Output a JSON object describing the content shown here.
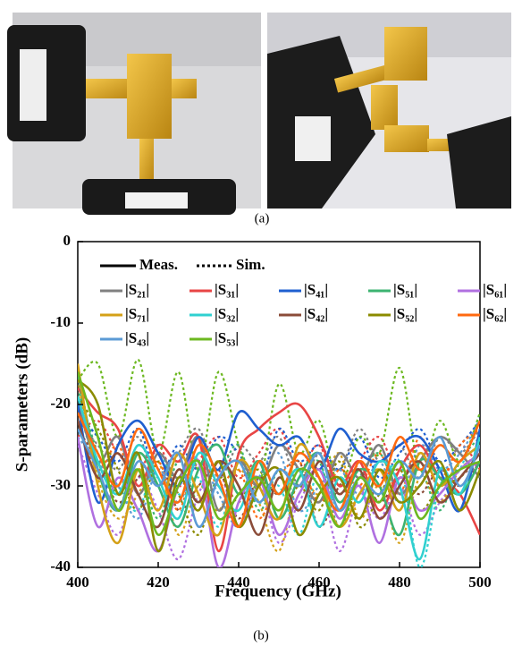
{
  "photo_caption": "(a)",
  "chart_caption": "(b)",
  "chart_data": {
    "type": "line",
    "xlabel": "Frequency (GHz)",
    "ylabel": "S-parameters (dB)",
    "xlim": [
      400,
      500
    ],
    "ylim": [
      -40,
      0
    ],
    "xticks": [
      400,
      420,
      440,
      460,
      480,
      500
    ],
    "yticks": [
      0,
      -10,
      -20,
      -30,
      -40
    ],
    "line_styles": [
      {
        "label": "Meas.",
        "dash": "solid"
      },
      {
        "label": "Sim.",
        "dash": "dotted"
      }
    ],
    "x": [
      400,
      405,
      410,
      415,
      420,
      425,
      430,
      435,
      440,
      445,
      450,
      455,
      460,
      465,
      470,
      475,
      480,
      485,
      490,
      495,
      500
    ],
    "series": [
      {
        "name": "|S₂₁|",
        "color": "#808080",
        "values": [
          -20,
          -27,
          -24,
          -31,
          -26,
          -29,
          -24,
          -33,
          -27,
          -30,
          -25,
          -28,
          -32,
          -26,
          -29,
          -25,
          -31,
          -27,
          -24,
          -26,
          -29
        ],
        "sim_values": [
          -22,
          -25,
          -28,
          -24,
          -30,
          -26,
          -23,
          -29,
          -25,
          -27,
          -24,
          -30,
          -26,
          -28,
          -23,
          -27,
          -25,
          -29,
          -24,
          -26,
          -23
        ]
      },
      {
        "name": "|S₃₁|",
        "color": "#e84545",
        "values": [
          -18,
          -21,
          -23,
          -30,
          -25,
          -27,
          -24,
          -38,
          -26,
          -23,
          -21,
          -20,
          -24,
          -30,
          -27,
          -33,
          -28,
          -25,
          -29,
          -31,
          -36
        ],
        "sim_values": [
          -24,
          -22,
          -26,
          -28,
          -25,
          -30,
          -27,
          -24,
          -29,
          -26,
          -23,
          -28,
          -25,
          -31,
          -27,
          -24,
          -29,
          -26,
          -30,
          -25,
          -28
        ]
      },
      {
        "name": "|S₄₁|",
        "color": "#1f5fd0",
        "values": [
          -20,
          -32,
          -25,
          -22,
          -26,
          -30,
          -24,
          -28,
          -21,
          -23,
          -25,
          -24,
          -28,
          -23,
          -26,
          -27,
          -25,
          -24,
          -28,
          -33,
          -23
        ],
        "sim_values": [
          -21,
          -24,
          -27,
          -23,
          -29,
          -25,
          -28,
          -24,
          -26,
          -30,
          -23,
          -27,
          -25,
          -28,
          -24,
          -29,
          -26,
          -23,
          -27,
          -25,
          -22
        ]
      },
      {
        "name": "|S₅₁|",
        "color": "#3cb371",
        "values": [
          -16,
          -28,
          -33,
          -26,
          -30,
          -35,
          -28,
          -25,
          -31,
          -27,
          -34,
          -29,
          -26,
          -32,
          -28,
          -30,
          -36,
          -27,
          -29,
          -31,
          -27
        ],
        "sim_values": [
          -18,
          -26,
          -31,
          -28,
          -34,
          -27,
          -32,
          -29,
          -25,
          -33,
          -28,
          -30,
          -27,
          -35,
          -29,
          -26,
          -31,
          -28,
          -33,
          -27,
          -24
        ]
      },
      {
        "name": "|S₆₁|",
        "color": "#b070e0",
        "values": [
          -24,
          -35,
          -29,
          -33,
          -38,
          -30,
          -27,
          -40,
          -32,
          -29,
          -36,
          -31,
          -28,
          -34,
          -30,
          -37,
          -29,
          -33,
          -31,
          -28,
          -26
        ],
        "sim_values": [
          -25,
          -31,
          -36,
          -29,
          -33,
          -39,
          -31,
          -28,
          -35,
          -30,
          -37,
          -32,
          -29,
          -38,
          -31,
          -34,
          -30,
          -36,
          -32,
          -29,
          -27
        ]
      },
      {
        "name": "|S₇₁|",
        "color": "#d4a017",
        "values": [
          -15,
          -30,
          -37,
          -28,
          -33,
          -26,
          -31,
          -36,
          -27,
          -30,
          -34,
          -25,
          -29,
          -35,
          -31,
          -28,
          -33,
          -26,
          -30,
          -27,
          -25
        ],
        "sim_values": [
          -17,
          -29,
          -34,
          -31,
          -27,
          -36,
          -30,
          -33,
          -28,
          -32,
          -38,
          -29,
          -31,
          -26,
          -34,
          -30,
          -37,
          -29,
          -32,
          -28,
          -26
        ]
      },
      {
        "name": "|S₃₂|",
        "color": "#30d0d0",
        "values": [
          -19,
          -27,
          -31,
          -25,
          -29,
          -34,
          -26,
          -30,
          -33,
          -27,
          -31,
          -28,
          -35,
          -29,
          -32,
          -27,
          -30,
          -39,
          -28,
          -31,
          -24
        ],
        "sim_values": [
          -20,
          -28,
          -30,
          -33,
          -26,
          -31,
          -29,
          -35,
          -27,
          -32,
          -30,
          -36,
          -28,
          -33,
          -29,
          -31,
          -27,
          -40,
          -30,
          -28,
          -21
        ]
      },
      {
        "name": "|S₄₂|",
        "color": "#8b4c39",
        "values": [
          -22,
          -29,
          -26,
          -31,
          -35,
          -28,
          -32,
          -27,
          -30,
          -36,
          -29,
          -33,
          -27,
          -31,
          -28,
          -34,
          -30,
          -27,
          -32,
          -29,
          -26
        ],
        "sim_values": [
          -23,
          -27,
          -32,
          -29,
          -26,
          -33,
          -30,
          -28,
          -34,
          -29,
          -31,
          -27,
          -35,
          -30,
          -28,
          -32,
          -29,
          -31,
          -28,
          -30,
          -27
        ]
      },
      {
        "name": "|S₅₂|",
        "color": "#8b8b00",
        "values": [
          -17,
          -20,
          -31,
          -26,
          -38,
          -29,
          -33,
          -27,
          -35,
          -30,
          -28,
          -36,
          -31,
          -29,
          -34,
          -28,
          -32,
          -30,
          -27,
          -33,
          -28
        ],
        "sim_values": [
          -19,
          -23,
          -28,
          -33,
          -27,
          -31,
          -36,
          -29,
          -32,
          -28,
          -34,
          -30,
          -33,
          -27,
          -35,
          -31,
          -28,
          -33,
          -30,
          -29,
          -26
        ]
      },
      {
        "name": "|S₆₂|",
        "color": "#ff6a10",
        "values": [
          -21,
          -26,
          -30,
          -23,
          -28,
          -32,
          -25,
          -29,
          -35,
          -27,
          -31,
          -26,
          -29,
          -33,
          -27,
          -30,
          -24,
          -28,
          -25,
          -27,
          -22
        ],
        "sim_values": [
          -22,
          -28,
          -25,
          -31,
          -27,
          -33,
          -26,
          -30,
          -28,
          -34,
          -29,
          -27,
          -32,
          -28,
          -30,
          -26,
          -31,
          -24,
          -29,
          -25,
          -23
        ]
      },
      {
        "name": "|S₄₃|",
        "color": "#5b9bd5",
        "values": [
          -23,
          -28,
          -33,
          -27,
          -30,
          -26,
          -35,
          -29,
          -27,
          -32,
          -28,
          -30,
          -26,
          -33,
          -29,
          -31,
          -27,
          -29,
          -24,
          -30,
          -25
        ],
        "sim_values": [
          -24,
          -27,
          -30,
          -34,
          -28,
          -32,
          -27,
          -31,
          -35,
          -29,
          -26,
          -33,
          -30,
          -28,
          -31,
          -27,
          -32,
          -25,
          -28,
          -26,
          -22
        ]
      },
      {
        "name": "|S₅₃|",
        "color": "#6cb820",
        "values": [
          -16,
          -24,
          -33,
          -28,
          -36,
          -30,
          -27,
          -34,
          -31,
          -29,
          -33,
          -28,
          -30,
          -35,
          -29,
          -32,
          -27,
          -34,
          -30,
          -28,
          -27
        ],
        "sim_values": [
          -17,
          -15,
          -24,
          -14.5,
          -26,
          -16,
          -28,
          -16,
          -25,
          -30,
          -17.5,
          -26,
          -22,
          -30,
          -24,
          -26,
          -15.5,
          -28,
          -22,
          -27,
          -21
        ]
      }
    ]
  }
}
